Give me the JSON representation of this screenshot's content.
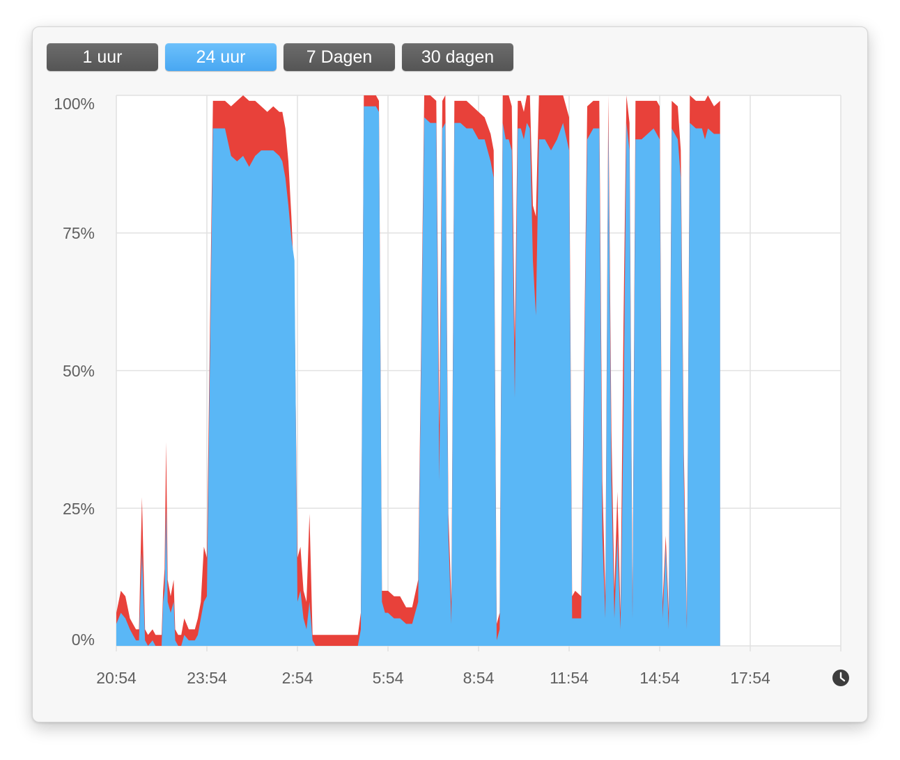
{
  "tabs": [
    {
      "label": "1 uur",
      "active": false
    },
    {
      "label": "24 uur",
      "active": true
    },
    {
      "label": "7 Dagen",
      "active": false
    },
    {
      "label": "30 dagen",
      "active": false
    }
  ],
  "icons": {
    "time": "clock-icon"
  },
  "colors": {
    "blue": "#5ab7f6",
    "red": "#e8413a",
    "grid": "#e1e1e1",
    "active_tab": "#5ab4f7",
    "inactive_tab": "#5f5f5f"
  },
  "chart_data": {
    "type": "area",
    "stacked": true,
    "grid": true,
    "y_tick_labels": [
      "0%",
      "25%",
      "50%",
      "75%",
      "100%"
    ],
    "y_ticks": [
      0,
      25,
      50,
      75,
      100
    ],
    "ylim": [
      0,
      100
    ],
    "x_tick_labels": [
      "20:54",
      "23:54",
      "2:54",
      "5:54",
      "8:54",
      "11:54",
      "14:54",
      "17:54"
    ],
    "x_ticks_hours": [
      0,
      3,
      6,
      9,
      12,
      15,
      18,
      21,
      24
    ],
    "xlim_hours": [
      0,
      24
    ],
    "series": [
      {
        "color": "#5ab7f6",
        "points": [
          [
            0.0,
            4
          ],
          [
            0.15,
            6
          ],
          [
            0.3,
            5
          ],
          [
            0.45,
            3
          ],
          [
            0.55,
            2
          ],
          [
            0.65,
            1
          ],
          [
            0.75,
            1
          ],
          [
            0.85,
            17
          ],
          [
            0.95,
            1
          ],
          [
            1.05,
            0
          ],
          [
            1.2,
            1
          ],
          [
            1.3,
            0
          ],
          [
            1.45,
            0
          ],
          [
            1.5,
            0
          ],
          [
            1.55,
            8
          ],
          [
            1.6,
            10
          ],
          [
            1.65,
            25
          ],
          [
            1.7,
            8
          ],
          [
            1.8,
            6
          ],
          [
            1.9,
            8
          ],
          [
            1.95,
            1
          ],
          [
            2.05,
            0
          ],
          [
            2.1,
            0
          ],
          [
            2.15,
            0
          ],
          [
            2.25,
            2
          ],
          [
            2.4,
            1
          ],
          [
            2.5,
            1
          ],
          [
            2.6,
            1
          ],
          [
            2.7,
            2
          ],
          [
            2.8,
            5
          ],
          [
            2.9,
            8
          ],
          [
            3.0,
            9
          ],
          [
            3.2,
            94
          ],
          [
            3.4,
            94
          ],
          [
            3.6,
            94
          ],
          [
            3.8,
            89
          ],
          [
            4.0,
            88
          ],
          [
            4.2,
            89
          ],
          [
            4.4,
            87
          ],
          [
            4.6,
            89
          ],
          [
            4.8,
            90
          ],
          [
            5.0,
            90
          ],
          [
            5.2,
            90
          ],
          [
            5.4,
            89
          ],
          [
            5.5,
            88
          ],
          [
            5.6,
            85
          ],
          [
            5.7,
            80
          ],
          [
            5.8,
            74
          ],
          [
            5.9,
            70
          ],
          [
            6.0,
            8
          ],
          [
            6.1,
            10
          ],
          [
            6.2,
            5
          ],
          [
            6.3,
            3
          ],
          [
            6.4,
            8
          ],
          [
            6.5,
            1
          ],
          [
            6.6,
            0
          ],
          [
            6.8,
            0
          ],
          [
            7.0,
            0
          ],
          [
            7.2,
            0
          ],
          [
            7.4,
            0
          ],
          [
            7.6,
            0
          ],
          [
            7.8,
            0
          ],
          [
            8.0,
            0
          ],
          [
            8.1,
            3
          ],
          [
            8.2,
            98
          ],
          [
            8.4,
            98
          ],
          [
            8.6,
            98
          ],
          [
            8.7,
            97
          ],
          [
            8.8,
            8
          ],
          [
            8.9,
            6
          ],
          [
            9.0,
            6
          ],
          [
            9.2,
            5
          ],
          [
            9.4,
            5
          ],
          [
            9.6,
            4
          ],
          [
            9.8,
            4
          ],
          [
            10.0,
            8
          ],
          [
            10.2,
            96
          ],
          [
            10.4,
            95
          ],
          [
            10.6,
            95
          ],
          [
            10.7,
            30
          ],
          [
            10.8,
            94
          ],
          [
            10.9,
            95
          ],
          [
            11.0,
            20
          ],
          [
            11.1,
            4
          ],
          [
            11.2,
            95
          ],
          [
            11.4,
            95
          ],
          [
            11.6,
            94
          ],
          [
            11.8,
            94
          ],
          [
            12.0,
            92
          ],
          [
            12.2,
            92
          ],
          [
            12.4,
            88
          ],
          [
            12.5,
            85
          ],
          [
            12.6,
            1
          ],
          [
            12.7,
            3
          ],
          [
            12.8,
            95
          ],
          [
            12.9,
            92
          ],
          [
            13.0,
            92
          ],
          [
            13.1,
            90
          ],
          [
            13.2,
            45
          ],
          [
            13.3,
            94
          ],
          [
            13.4,
            94
          ],
          [
            13.5,
            92
          ],
          [
            13.6,
            95
          ],
          [
            13.7,
            94
          ],
          [
            13.8,
            70
          ],
          [
            13.9,
            60
          ],
          [
            14.0,
            92
          ],
          [
            14.2,
            92
          ],
          [
            14.4,
            90
          ],
          [
            14.6,
            92
          ],
          [
            14.8,
            95
          ],
          [
            15.0,
            90
          ],
          [
            15.1,
            5
          ],
          [
            15.2,
            5
          ],
          [
            15.4,
            5
          ],
          [
            15.6,
            92
          ],
          [
            15.8,
            94
          ],
          [
            16.0,
            94
          ],
          [
            16.1,
            20
          ],
          [
            16.2,
            5
          ],
          [
            16.3,
            95
          ],
          [
            16.4,
            30
          ],
          [
            16.5,
            5
          ],
          [
            16.6,
            20
          ],
          [
            16.7,
            3
          ],
          [
            16.8,
            40
          ],
          [
            16.9,
            95
          ],
          [
            17.0,
            90
          ],
          [
            17.1,
            5
          ],
          [
            17.2,
            92
          ],
          [
            17.4,
            92
          ],
          [
            17.6,
            93
          ],
          [
            17.8,
            94
          ],
          [
            17.9,
            93
          ],
          [
            18.0,
            92
          ],
          [
            18.1,
            5
          ],
          [
            18.2,
            18
          ],
          [
            18.3,
            3
          ],
          [
            18.4,
            94
          ],
          [
            18.6,
            92
          ],
          [
            18.7,
            85
          ],
          [
            18.8,
            30
          ],
          [
            18.9,
            3
          ],
          [
            19.0,
            95
          ],
          [
            19.2,
            94
          ],
          [
            19.4,
            94
          ],
          [
            19.5,
            92
          ],
          [
            19.6,
            94
          ],
          [
            19.8,
            93
          ],
          [
            20.0,
            93
          ]
        ]
      },
      {
        "color": "#e8413a",
        "points": [
          [
            0.0,
            6
          ],
          [
            0.15,
            10
          ],
          [
            0.3,
            9
          ],
          [
            0.45,
            5
          ],
          [
            0.55,
            4
          ],
          [
            0.65,
            3
          ],
          [
            0.75,
            3
          ],
          [
            0.85,
            27
          ],
          [
            0.95,
            3
          ],
          [
            1.05,
            2
          ],
          [
            1.2,
            3
          ],
          [
            1.3,
            2
          ],
          [
            1.45,
            2
          ],
          [
            1.5,
            2
          ],
          [
            1.55,
            10
          ],
          [
            1.6,
            14
          ],
          [
            1.65,
            37
          ],
          [
            1.7,
            12
          ],
          [
            1.8,
            9
          ],
          [
            1.9,
            12
          ],
          [
            1.95,
            3
          ],
          [
            2.05,
            2
          ],
          [
            2.1,
            2
          ],
          [
            2.15,
            2
          ],
          [
            2.25,
            5
          ],
          [
            2.4,
            3
          ],
          [
            2.5,
            3
          ],
          [
            2.6,
            3
          ],
          [
            2.7,
            5
          ],
          [
            2.8,
            8
          ],
          [
            2.9,
            18
          ],
          [
            3.0,
            16
          ],
          [
            3.2,
            99
          ],
          [
            3.4,
            99
          ],
          [
            3.6,
            99
          ],
          [
            3.8,
            98
          ],
          [
            4.0,
            99
          ],
          [
            4.2,
            100
          ],
          [
            4.4,
            99
          ],
          [
            4.6,
            99
          ],
          [
            4.8,
            98
          ],
          [
            5.0,
            97
          ],
          [
            5.2,
            98
          ],
          [
            5.4,
            97
          ],
          [
            5.5,
            97
          ],
          [
            5.6,
            94
          ],
          [
            5.7,
            88
          ],
          [
            5.8,
            78
          ],
          [
            5.9,
            65
          ],
          [
            6.0,
            16
          ],
          [
            6.1,
            18
          ],
          [
            6.2,
            10
          ],
          [
            6.3,
            8
          ],
          [
            6.4,
            24
          ],
          [
            6.5,
            2
          ],
          [
            6.6,
            2
          ],
          [
            6.8,
            2
          ],
          [
            7.0,
            2
          ],
          [
            7.2,
            2
          ],
          [
            7.4,
            2
          ],
          [
            7.6,
            2
          ],
          [
            7.8,
            2
          ],
          [
            8.0,
            2
          ],
          [
            8.1,
            6
          ],
          [
            8.2,
            100
          ],
          [
            8.4,
            100
          ],
          [
            8.6,
            100
          ],
          [
            8.7,
            99
          ],
          [
            8.8,
            10
          ],
          [
            8.9,
            10
          ],
          [
            9.0,
            10
          ],
          [
            9.2,
            9
          ],
          [
            9.4,
            9
          ],
          [
            9.6,
            7
          ],
          [
            9.8,
            7
          ],
          [
            10.0,
            12
          ],
          [
            10.2,
            100
          ],
          [
            10.4,
            100
          ],
          [
            10.6,
            99
          ],
          [
            10.7,
            40
          ],
          [
            10.8,
            99
          ],
          [
            10.9,
            100
          ],
          [
            11.0,
            24
          ],
          [
            11.1,
            8
          ],
          [
            11.2,
            99
          ],
          [
            11.4,
            99
          ],
          [
            11.6,
            99
          ],
          [
            11.8,
            98
          ],
          [
            12.0,
            97
          ],
          [
            12.2,
            96
          ],
          [
            12.4,
            93
          ],
          [
            12.5,
            90
          ],
          [
            12.6,
            4
          ],
          [
            12.7,
            6
          ],
          [
            12.8,
            100
          ],
          [
            12.9,
            100
          ],
          [
            13.0,
            100
          ],
          [
            13.1,
            98
          ],
          [
            13.2,
            55
          ],
          [
            13.3,
            99
          ],
          [
            13.4,
            99
          ],
          [
            13.5,
            97
          ],
          [
            13.6,
            100
          ],
          [
            13.7,
            100
          ],
          [
            13.8,
            80
          ],
          [
            13.9,
            78
          ],
          [
            14.0,
            100
          ],
          [
            14.2,
            100
          ],
          [
            14.4,
            100
          ],
          [
            14.6,
            100
          ],
          [
            14.8,
            100
          ],
          [
            15.0,
            96
          ],
          [
            15.1,
            9
          ],
          [
            15.2,
            10
          ],
          [
            15.4,
            9
          ],
          [
            15.6,
            98
          ],
          [
            15.8,
            99
          ],
          [
            16.0,
            99
          ],
          [
            16.1,
            30
          ],
          [
            16.2,
            9
          ],
          [
            16.3,
            100
          ],
          [
            16.4,
            39
          ],
          [
            16.5,
            10
          ],
          [
            16.6,
            28
          ],
          [
            16.7,
            6
          ],
          [
            16.8,
            58
          ],
          [
            16.9,
            100
          ],
          [
            17.0,
            95
          ],
          [
            17.1,
            8
          ],
          [
            17.2,
            99
          ],
          [
            17.4,
            99
          ],
          [
            17.6,
            99
          ],
          [
            17.8,
            99
          ],
          [
            17.9,
            99
          ],
          [
            18.0,
            98
          ],
          [
            18.1,
            8
          ],
          [
            18.2,
            20
          ],
          [
            18.3,
            6
          ],
          [
            18.4,
            99
          ],
          [
            18.6,
            98
          ],
          [
            18.7,
            90
          ],
          [
            18.8,
            35
          ],
          [
            18.9,
            5
          ],
          [
            19.0,
            100
          ],
          [
            19.2,
            99
          ],
          [
            19.4,
            99
          ],
          [
            19.5,
            99
          ],
          [
            19.6,
            100
          ],
          [
            19.8,
            98
          ],
          [
            20.0,
            99
          ]
        ]
      }
    ]
  }
}
